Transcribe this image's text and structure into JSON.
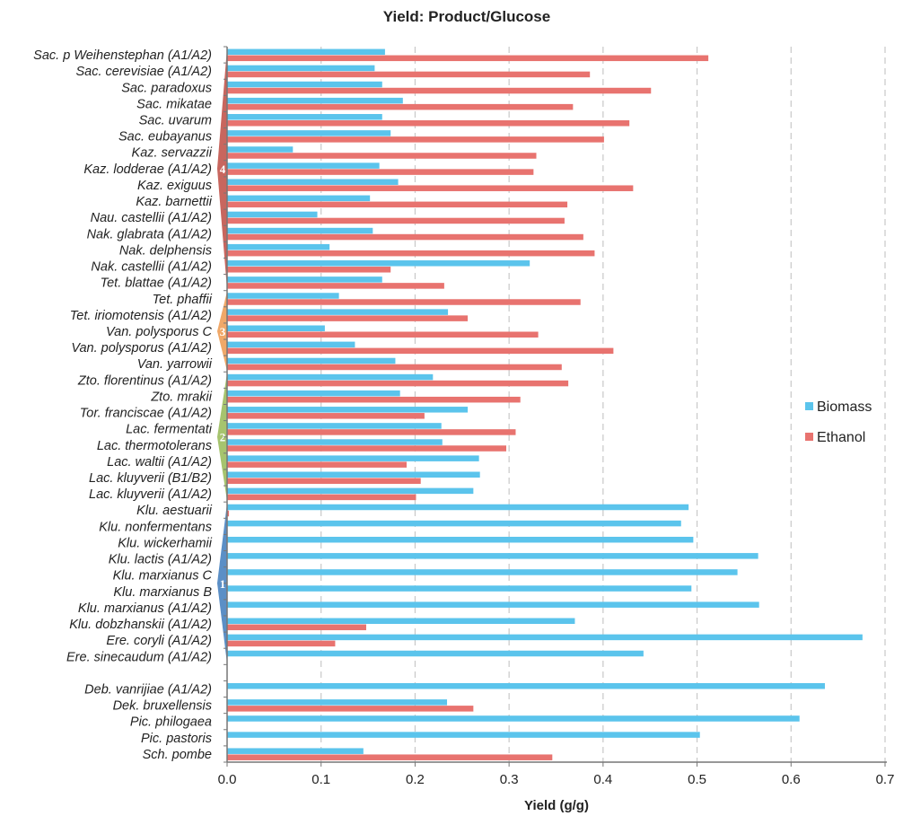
{
  "chart_data": {
    "type": "bar",
    "orientation": "horizontal",
    "title": "Yield: Product/Glucose",
    "xlabel": "Yield (g/g)",
    "ylabel": "",
    "xlim": [
      0,
      0.7
    ],
    "xticks": [
      "0.0",
      "0.1",
      "0.2",
      "0.3",
      "0.4",
      "0.5",
      "0.6",
      "0.7"
    ],
    "grid": "vertical dashed",
    "legend_position": "right",
    "categories": [
      "Sac. p Weihenstephan (A1/A2)",
      "Sac. cerevisiae (A1/A2)",
      "Sac. paradoxus",
      "Sac. mikatae",
      "Sac. uvarum",
      "Sac. eubayanus",
      "Kaz. servazzii",
      "Kaz. lodderae (A1/A2)",
      "Kaz. exiguus",
      "Kaz. barnettii",
      "Nau. castellii (A1/A2)",
      "Nak. glabrata (A1/A2)",
      "Nak. delphensis",
      "Nak. castellii (A1/A2)",
      "Tet. blattae (A1/A2)",
      "Tet. phaffii",
      "Tet. iriomotensis (A1/A2)",
      "Van. polysporus C",
      "Van. polysporus (A1/A2)",
      "Van. yarrowii",
      "Zto. florentinus (A1/A2)",
      "Zto. mrakii",
      "Tor. franciscae (A1/A2)",
      "Lac. fermentati",
      "Lac. thermotolerans",
      "Lac. waltii (A1/A2)",
      "Lac. kluyverii (B1/B2)",
      "Lac. kluyverii (A1/A2)",
      "Klu. aestuarii",
      "Klu. nonfermentans",
      "Klu. wickerhamii",
      "Klu. lactis (A1/A2)",
      "Klu. marxianus C",
      "Klu. marxianus B",
      "Klu. marxianus (A1/A2)",
      "Klu. dobzhanskii (A1/A2)",
      "Ere. coryli (A1/A2)",
      "Ere. sinecaudum (A1/A2)",
      "",
      "Deb. vanrijiae (A1/A2)",
      "Dek. bruxellensis",
      "Pic. philogaea",
      "Pic. pastoris",
      "Sch. pombe"
    ],
    "series": [
      {
        "name": "Biomass",
        "color": "#5bc4ec",
        "values": [
          0.168,
          0.157,
          0.165,
          0.187,
          0.165,
          0.174,
          0.07,
          0.162,
          0.182,
          0.152,
          0.096,
          0.155,
          0.109,
          0.322,
          0.165,
          0.119,
          0.235,
          0.104,
          0.136,
          0.179,
          0.219,
          0.184,
          0.256,
          0.228,
          0.229,
          0.268,
          0.269,
          0.262,
          0.491,
          0.483,
          0.496,
          0.565,
          0.543,
          0.494,
          0.566,
          0.37,
          0.676,
          0.443,
          null,
          0.636,
          0.234,
          0.609,
          0.503,
          0.145
        ]
      },
      {
        "name": "Ethanol",
        "color": "#e8736f",
        "values": [
          0.512,
          0.386,
          0.451,
          0.368,
          0.428,
          0.401,
          0.329,
          0.326,
          0.432,
          0.362,
          0.359,
          0.379,
          0.391,
          0.174,
          0.231,
          0.376,
          0.256,
          0.331,
          0.411,
          0.356,
          0.363,
          0.312,
          0.21,
          0.307,
          0.297,
          0.191,
          0.206,
          0.201,
          0.002,
          0.0,
          0.0,
          0.0,
          0.0,
          0.0,
          0.0,
          0.148,
          0.115,
          0.0,
          null,
          0.0,
          0.262,
          0.0,
          0.0,
          0.346
        ]
      }
    ],
    "groups": [
      {
        "label": "4",
        "color": "#c8665e",
        "from": 0,
        "to": 14
      },
      {
        "label": "3",
        "color": "#f0a868",
        "from": 15,
        "to": 19
      },
      {
        "label": "2",
        "color": "#a6c46e",
        "from": 20,
        "to": 27
      },
      {
        "label": "1",
        "color": "#5b8fc6",
        "from": 28,
        "to": 37
      }
    ]
  }
}
